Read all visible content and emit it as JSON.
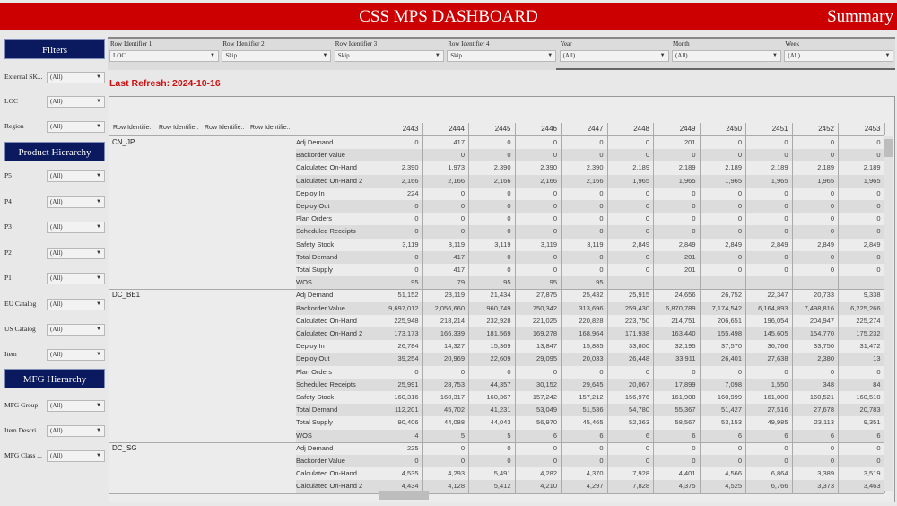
{
  "header": {
    "title": "CSS MPS DASHBOARD",
    "right": "Summary"
  },
  "colors": {
    "header": "#cc0000",
    "section": "#0b1a5e",
    "refresh": "#cc1111"
  },
  "sidebar": {
    "filters_title": "Filters",
    "filters": [
      {
        "label": "External SK...",
        "value": "(All)"
      },
      {
        "label": "LOC",
        "value": "(All)"
      },
      {
        "label": "Region",
        "value": "(All)"
      }
    ],
    "product_title": "Product Hierarchy",
    "product": [
      {
        "label": "P5",
        "value": "(All)"
      },
      {
        "label": "P4",
        "value": "(All)"
      },
      {
        "label": "P3",
        "value": "(All)"
      },
      {
        "label": "P2",
        "value": "(All)"
      },
      {
        "label": "P1",
        "value": "(All)"
      },
      {
        "label": "EU Catalog",
        "value": "(All)"
      },
      {
        "label": "US Catalog",
        "value": "(All)"
      },
      {
        "label": "Item",
        "value": "(All)"
      }
    ],
    "mfg_title": "MFG Hierarchy",
    "mfg": [
      {
        "label": "MFG Group",
        "value": "(All)"
      },
      {
        "label": "Item Descri...",
        "value": "(All)"
      },
      {
        "label": "MFG Class ...",
        "value": "(All)"
      }
    ]
  },
  "topfilters": [
    {
      "label": "Row Identifier 1",
      "value": "LOC"
    },
    {
      "label": "Row Identifier 2",
      "value": "Skip"
    },
    {
      "label": "Row Identifier 3",
      "value": "Skip"
    },
    {
      "label": "Row Identifier 4",
      "value": "Skip"
    },
    {
      "label": "Year",
      "value": "(All)"
    },
    {
      "label": "Month",
      "value": "(All)"
    },
    {
      "label": "Week",
      "value": "(All)"
    }
  ],
  "refresh": "Last Refresh: 2024-10-16",
  "table": {
    "row_headers": [
      "Row Identifie..",
      "Row Identifie..",
      "Row Identifie..",
      "Row Identifie.."
    ],
    "weeks": [
      "2443",
      "2444",
      "2445",
      "2446",
      "2447",
      "2448",
      "2449",
      "2450",
      "2451",
      "2452",
      "2453"
    ],
    "groups": [
      {
        "name": "CN_JP",
        "rows": [
          {
            "label": "Adj Demand",
            "values": [
              "0",
              "417",
              "0",
              "0",
              "0",
              "0",
              "201",
              "0",
              "0",
              "0",
              "0"
            ]
          },
          {
            "label": "Backorder Value",
            "values": [
              "",
              "0",
              "0",
              "0",
              "0",
              "0",
              "0",
              "0",
              "0",
              "0",
              "0"
            ]
          },
          {
            "label": "Calculated On-Hand",
            "values": [
              "2,390",
              "1,973",
              "2,390",
              "2,390",
              "2,390",
              "2,189",
              "2,189",
              "2,189",
              "2,189",
              "2,189",
              "2,189"
            ]
          },
          {
            "label": "Calculated On-Hand 2",
            "values": [
              "2,166",
              "2,166",
              "2,166",
              "2,166",
              "2,166",
              "1,965",
              "1,965",
              "1,965",
              "1,965",
              "1,965",
              "1,965"
            ]
          },
          {
            "label": "Deploy In",
            "values": [
              "224",
              "0",
              "0",
              "0",
              "0",
              "0",
              "0",
              "0",
              "0",
              "0",
              "0"
            ]
          },
          {
            "label": "Deploy Out",
            "values": [
              "0",
              "0",
              "0",
              "0",
              "0",
              "0",
              "0",
              "0",
              "0",
              "0",
              "0"
            ]
          },
          {
            "label": "Plan Orders",
            "values": [
              "0",
              "0",
              "0",
              "0",
              "0",
              "0",
              "0",
              "0",
              "0",
              "0",
              "0"
            ]
          },
          {
            "label": "Scheduled Receipts",
            "values": [
              "0",
              "0",
              "0",
              "0",
              "0",
              "0",
              "0",
              "0",
              "0",
              "0",
              "0"
            ]
          },
          {
            "label": "Safety Stock",
            "values": [
              "3,119",
              "3,119",
              "3,119",
              "3,119",
              "3,119",
              "2,849",
              "2,849",
              "2,849",
              "2,849",
              "2,849",
              "2,849"
            ]
          },
          {
            "label": "Total Demand",
            "values": [
              "0",
              "417",
              "0",
              "0",
              "0",
              "0",
              "201",
              "0",
              "0",
              "0",
              "0"
            ]
          },
          {
            "label": "Total Supply",
            "values": [
              "0",
              "417",
              "0",
              "0",
              "0",
              "0",
              "201",
              "0",
              "0",
              "0",
              "0"
            ]
          },
          {
            "label": "WOS",
            "values": [
              "95",
              "79",
              "95",
              "95",
              "95",
              "",
              "",
              "",
              "",
              "",
              ""
            ]
          }
        ]
      },
      {
        "name": "DC_BE1",
        "rows": [
          {
            "label": "Adj Demand",
            "values": [
              "51,152",
              "23,119",
              "21,434",
              "27,875",
              "25,432",
              "25,915",
              "24,656",
              "26,752",
              "22,347",
              "20,733",
              "9,338"
            ]
          },
          {
            "label": "Backorder Value",
            "values": [
              "9,697,012",
              "2,056,660",
              "960,749",
              "750,342",
              "313,696",
              "259,430",
              "6,870,789",
              "7,174,542",
              "6,164,893",
              "7,498,816",
              "6,225,266"
            ]
          },
          {
            "label": "Calculated On-Hand",
            "values": [
              "225,948",
              "218,214",
              "232,928",
              "221,025",
              "220,828",
              "223,750",
              "214,751",
              "206,651",
              "196,054",
              "204,947",
              "225,274"
            ]
          },
          {
            "label": "Calculated On-Hand 2",
            "values": [
              "173,173",
              "166,339",
              "181,569",
              "169,278",
              "168,964",
              "171,938",
              "163,440",
              "155,498",
              "145,605",
              "154,770",
              "175,232"
            ]
          },
          {
            "label": "Deploy In",
            "values": [
              "26,784",
              "14,327",
              "15,369",
              "13,847",
              "15,885",
              "33,800",
              "32,195",
              "37,570",
              "36,766",
              "33,750",
              "31,472"
            ]
          },
          {
            "label": "Deploy Out",
            "values": [
              "39,254",
              "20,969",
              "22,609",
              "29,095",
              "20,033",
              "26,448",
              "33,911",
              "26,401",
              "27,638",
              "2,380",
              "13"
            ]
          },
          {
            "label": "Plan Orders",
            "values": [
              "0",
              "0",
              "0",
              "0",
              "0",
              "0",
              "0",
              "0",
              "0",
              "0",
              "0"
            ]
          },
          {
            "label": "Scheduled Receipts",
            "values": [
              "25,991",
              "28,753",
              "44,357",
              "30,152",
              "29,645",
              "20,067",
              "17,899",
              "7,098",
              "1,550",
              "348",
              "84"
            ]
          },
          {
            "label": "Safety Stock",
            "values": [
              "160,316",
              "160,317",
              "160,367",
              "157,242",
              "157,212",
              "156,976",
              "161,908",
              "160,999",
              "161,000",
              "160,521",
              "160,510"
            ]
          },
          {
            "label": "Total Demand",
            "values": [
              "112,201",
              "45,702",
              "41,231",
              "53,049",
              "51,536",
              "54,780",
              "55,367",
              "51,427",
              "27,516",
              "27,678",
              "20,783"
            ]
          },
          {
            "label": "Total Supply",
            "values": [
              "90,406",
              "44,088",
              "44,043",
              "56,970",
              "45,465",
              "52,363",
              "58,567",
              "53,153",
              "49,985",
              "23,113",
              "9,351"
            ]
          },
          {
            "label": "WOS",
            "values": [
              "4",
              "5",
              "5",
              "6",
              "6",
              "6",
              "6",
              "6",
              "6",
              "6",
              "6"
            ]
          }
        ]
      },
      {
        "name": "DC_SG",
        "rows": [
          {
            "label": "Adj Demand",
            "values": [
              "225",
              "0",
              "0",
              "0",
              "0",
              "0",
              "0",
              "0",
              "0",
              "0",
              "0"
            ]
          },
          {
            "label": "Backorder Value",
            "values": [
              "0",
              "0",
              "0",
              "0",
              "0",
              "0",
              "0",
              "0",
              "0",
              "0",
              "0"
            ]
          },
          {
            "label": "Calculated On-Hand",
            "values": [
              "4,535",
              "4,293",
              "5,491",
              "4,282",
              "4,370",
              "7,928",
              "4,401",
              "4,566",
              "6,864",
              "3,389",
              "3,519"
            ]
          },
          {
            "label": "Calculated On-Hand 2",
            "values": [
              "4,434",
              "4,128",
              "5,412",
              "4,210",
              "4,297",
              "7,828",
              "4,375",
              "4,525",
              "6,766",
              "3,373",
              "3,463"
            ]
          }
        ]
      }
    ]
  }
}
